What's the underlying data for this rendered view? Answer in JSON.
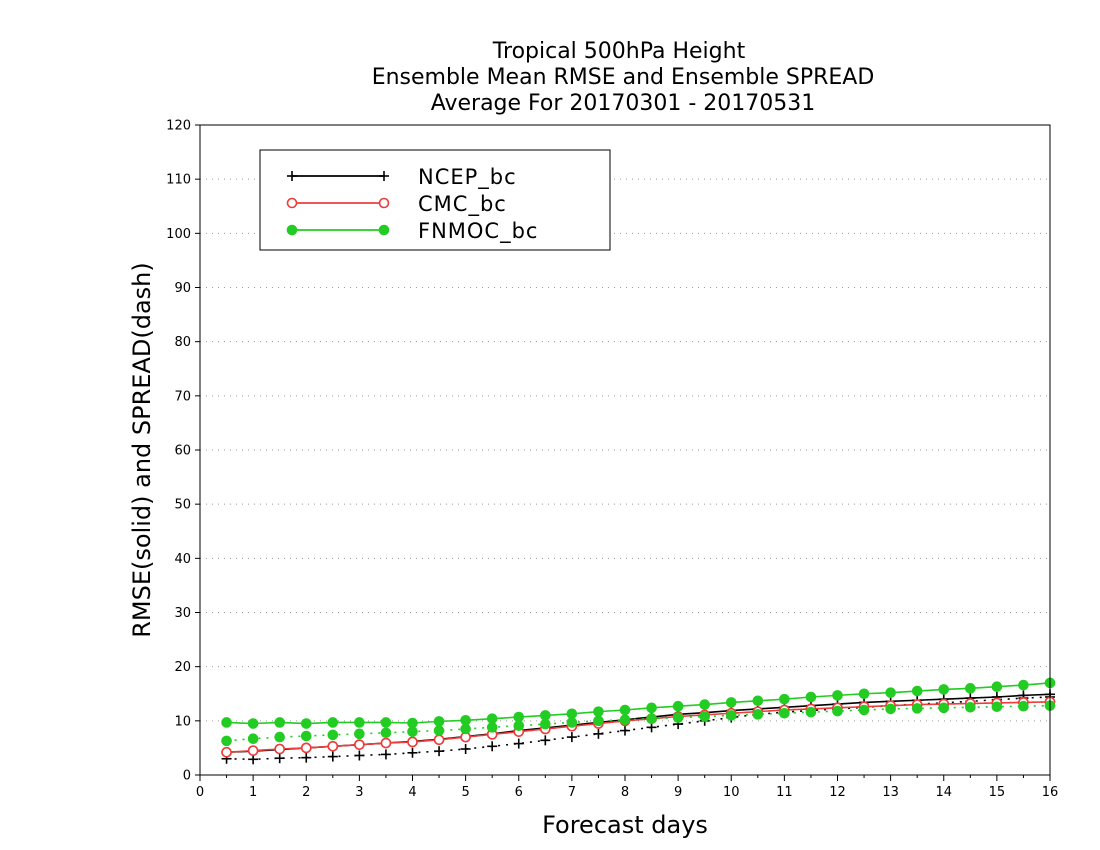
{
  "chart_data": {
    "type": "line",
    "title": [
      "Tropical 500hPa Height",
      "Ensemble Mean RMSE and Ensemble SPREAD",
      "Average For 20170301 - 20170531"
    ],
    "xlabel": "Forecast days",
    "ylabel": "RMSE(solid) and SPREAD(dash)",
    "xlim": [
      0,
      16
    ],
    "ylim": [
      0,
      120
    ],
    "xticks": [
      "0",
      "1",
      "2",
      "3",
      "4",
      "5",
      "6",
      "7",
      "8",
      "9",
      "10",
      "11",
      "12",
      "13",
      "14",
      "15",
      "16"
    ],
    "yticks": [
      "0",
      "10",
      "20",
      "30",
      "40",
      "50",
      "60",
      "70",
      "80",
      "90",
      "100",
      "110",
      "120"
    ],
    "grid": "horizontal-dotted",
    "legend_position": "top-left",
    "x": [
      0.5,
      1,
      1.5,
      2,
      2.5,
      3,
      3.5,
      4,
      4.5,
      5,
      5.5,
      6,
      6.5,
      7,
      7.5,
      8,
      8.5,
      9,
      9.5,
      10,
      10.5,
      11,
      11.5,
      12,
      12.5,
      13,
      13.5,
      14,
      14.5,
      15,
      15.5,
      16
    ],
    "series": [
      {
        "name": "NCEP_bc",
        "color": "#000000",
        "marker": "plus",
        "rmse": [
          4.2,
          4.4,
          4.7,
          5.0,
          5.3,
          5.6,
          5.9,
          6.2,
          6.6,
          7.1,
          7.6,
          8.2,
          8.7,
          9.2,
          9.7,
          10.2,
          10.7,
          11.2,
          11.5,
          11.9,
          12.2,
          12.5,
          12.8,
          13.1,
          13.4,
          13.6,
          13.8,
          14.0,
          14.2,
          14.4,
          14.7,
          14.9
        ],
        "spread": [
          3.0,
          2.9,
          3.1,
          3.2,
          3.4,
          3.6,
          3.8,
          4.1,
          4.4,
          4.8,
          5.3,
          5.8,
          6.4,
          7.0,
          7.6,
          8.2,
          8.8,
          9.4,
          10.0,
          10.6,
          11.2,
          11.6,
          11.9,
          12.2,
          12.5,
          12.8,
          13.1,
          13.3,
          13.6,
          13.9,
          14.2,
          14.4
        ]
      },
      {
        "name": "CMC_bc",
        "color": "#ee3b3b",
        "marker": "open-circle",
        "rmse": [
          4.2,
          4.5,
          4.8,
          5.0,
          5.3,
          5.6,
          5.9,
          6.1,
          6.5,
          7.0,
          7.5,
          8.0,
          8.5,
          9.0,
          9.5,
          10.0,
          10.4,
          10.8,
          11.1,
          11.4,
          11.7,
          12.0,
          12.2,
          12.4,
          12.6,
          12.8,
          13.0,
          13.1,
          13.2,
          13.3,
          13.4,
          13.5
        ],
        "spread": [
          4.2,
          4.5,
          4.8,
          5.0,
          5.3,
          5.6,
          5.9,
          6.1,
          6.5,
          7.0,
          7.5,
          8.0,
          8.5,
          9.0,
          9.5,
          10.0,
          10.4,
          10.8,
          11.1,
          11.4,
          11.7,
          12.0,
          12.2,
          12.4,
          12.6,
          12.8,
          13.0,
          13.1,
          13.2,
          13.3,
          13.4,
          13.5
        ]
      },
      {
        "name": "FNMOC_bc",
        "color": "#22cc22",
        "marker": "filled-circle",
        "rmse": [
          9.7,
          9.5,
          9.7,
          9.5,
          9.7,
          9.7,
          9.7,
          9.6,
          9.9,
          10.1,
          10.4,
          10.7,
          11.0,
          11.3,
          11.7,
          12.0,
          12.4,
          12.7,
          13.0,
          13.4,
          13.7,
          14.0,
          14.4,
          14.7,
          15.0,
          15.2,
          15.5,
          15.8,
          16.0,
          16.3,
          16.6,
          17.0
        ],
        "spread": [
          6.3,
          6.7,
          7.0,
          7.2,
          7.4,
          7.6,
          7.8,
          8.0,
          8.2,
          8.5,
          8.8,
          9.1,
          9.4,
          9.7,
          10.0,
          10.2,
          10.4,
          10.6,
          10.8,
          11.0,
          11.2,
          11.4,
          11.6,
          11.8,
          12.0,
          12.2,
          12.3,
          12.4,
          12.5,
          12.6,
          12.7,
          12.8
        ]
      }
    ]
  }
}
